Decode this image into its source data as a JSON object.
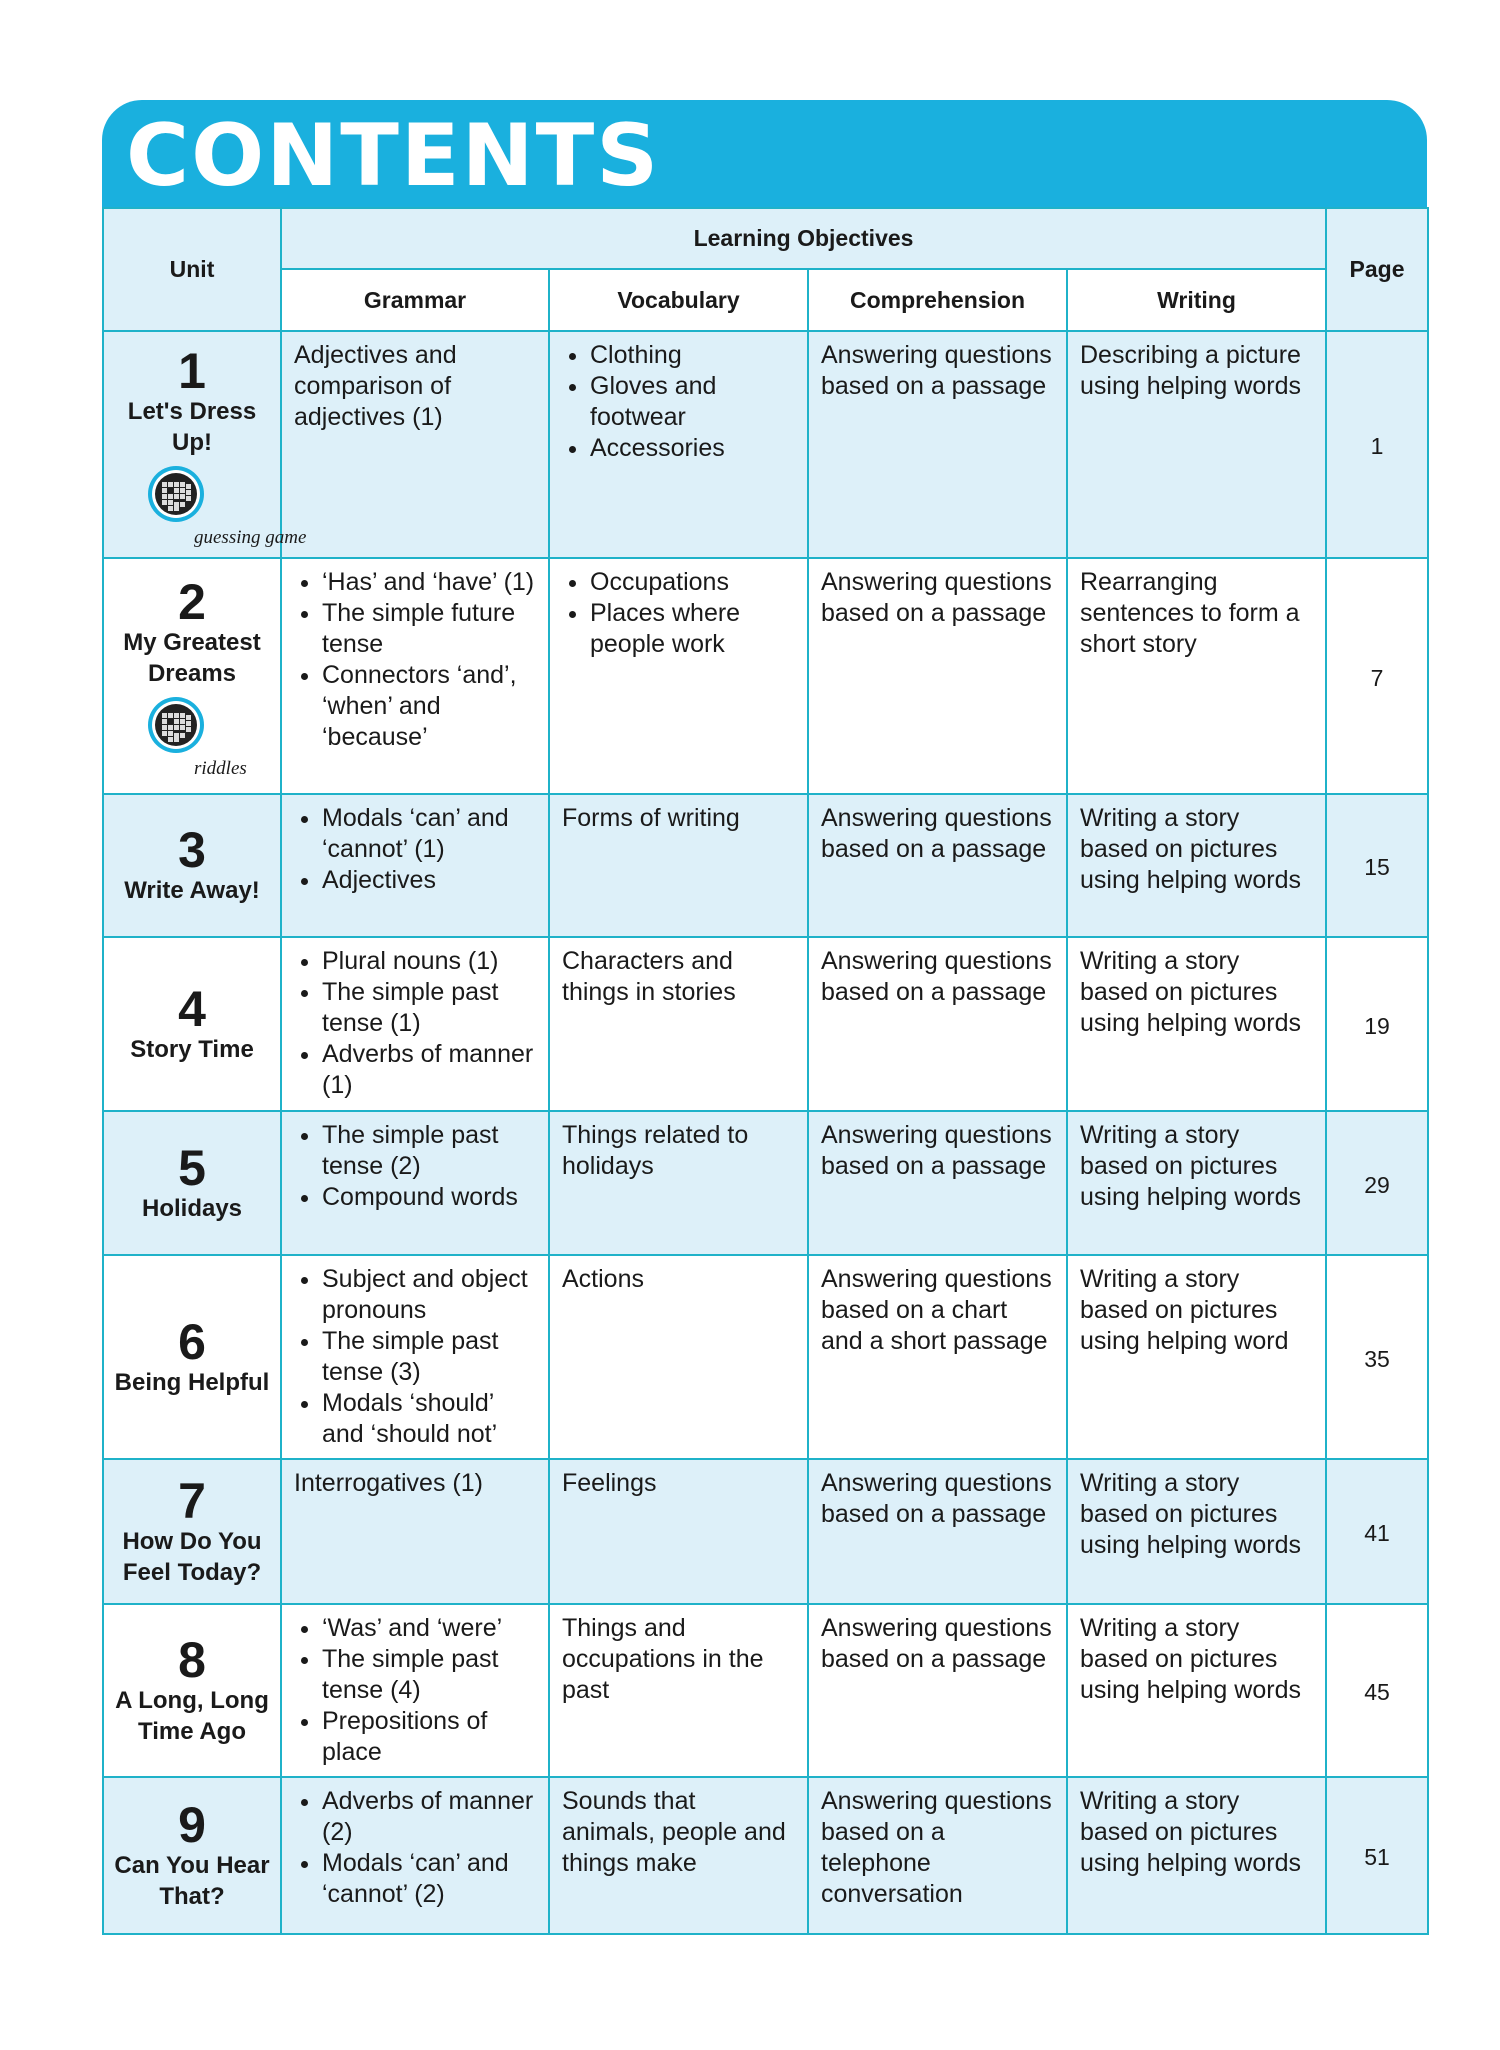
{
  "title": "CONTENTS",
  "colors": {
    "header": "#1ab0de",
    "border": "#1fb2c9",
    "row_tint": "#ddf0f9"
  },
  "headers": {
    "unit": "Unit",
    "learning_objectives": "Learning Objectives",
    "grammar": "Grammar",
    "vocabulary": "Vocabulary",
    "comprehension": "Comprehension",
    "writing": "Writing",
    "page": "Page"
  },
  "rows": [
    {
      "num": "1",
      "title": "Let's Dress Up!",
      "icon": "crossword-icon",
      "icon_label": "guessing game",
      "grammar": "Adjectives and comparison of adjectives (1)",
      "vocabulary": [
        "Clothing",
        "Gloves and footwear",
        "Accessories"
      ],
      "comprehension": "Answering questions based on a passage",
      "writing": "Describing a picture using helping words",
      "page": "1"
    },
    {
      "num": "2",
      "title": "My Greatest Dreams",
      "icon": "crossword-icon",
      "icon_label": "riddles",
      "grammar": [
        "‘Has’ and ‘have’ (1)",
        "The simple future tense",
        "Connectors ‘and’, ‘when’ and ‘because’"
      ],
      "vocabulary": [
        "Occupations",
        "Places where people work"
      ],
      "comprehension": "Answering questions based on a passage",
      "writing": "Rearranging sentences to form a short story",
      "page": "7"
    },
    {
      "num": "3",
      "title": "Write Away!",
      "grammar": [
        "Modals ‘can’ and ‘cannot’ (1)",
        "Adjectives"
      ],
      "vocabulary": "Forms of writing",
      "comprehension": "Answering questions based on a passage",
      "writing": "Writing a story based on pictures using helping words",
      "page": "15"
    },
    {
      "num": "4",
      "title": "Story Time",
      "grammar": [
        "Plural nouns (1)",
        "The simple past tense (1)",
        "Adverbs of manner (1)"
      ],
      "vocabulary": "Characters and things in stories",
      "comprehension": "Answering questions based on a passage",
      "writing": "Writing a story based on pictures using helping words",
      "page": "19"
    },
    {
      "num": "5",
      "title": "Holidays",
      "grammar": [
        "The simple past tense (2)",
        "Compound words"
      ],
      "vocabulary": "Things related to holidays",
      "comprehension": "Answering questions based on a passage",
      "writing": "Writing a story based on pictures using helping words",
      "page": "29"
    },
    {
      "num": "6",
      "title": "Being Helpful",
      "grammar": [
        "Subject and object pronouns",
        "The simple past tense (3)",
        "Modals ‘should’ and ‘should not’"
      ],
      "vocabulary": "Actions",
      "comprehension": "Answering questions based on a chart and a short passage",
      "writing": "Writing a story based on pictures using helping word",
      "page": "35"
    },
    {
      "num": "7",
      "title": "How Do You Feel Today?",
      "grammar": "Interrogatives (1)",
      "vocabulary": "Feelings",
      "comprehension": "Answering questions based on a passage",
      "writing": "Writing a story based on pictures using helping words",
      "page": "41"
    },
    {
      "num": "8",
      "title": "A Long, Long Time Ago",
      "grammar": [
        "‘Was’ and ‘were’",
        "The simple past tense (4)",
        "Prepositions of place"
      ],
      "vocabulary": "Things and occupations in the past",
      "comprehension": "Answering questions based on a passage",
      "writing": "Writing a story based on pictures using helping words",
      "page": "45"
    },
    {
      "num": "9",
      "title": "Can You Hear That?",
      "grammar": [
        "Adverbs of manner (2)",
        "Modals ‘can’ and ‘cannot’ (2)"
      ],
      "vocabulary": "Sounds that animals, people and things make",
      "comprehension": "Answering questions based on a telephone conversation",
      "writing": "Writing a story based on pictures using helping words",
      "page": "51"
    }
  ]
}
